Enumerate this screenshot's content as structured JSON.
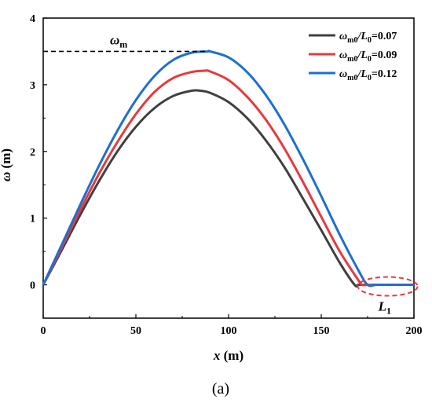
{
  "chart_data": {
    "type": "line",
    "xlabel": "x (m)",
    "ylabel": "ω (m)",
    "xlim": [
      0,
      200
    ],
    "ylim": [
      -0.5,
      4
    ],
    "x_ticks": [
      0,
      50,
      100,
      150,
      200
    ],
    "y_ticks": [
      0,
      1,
      2,
      3,
      4
    ],
    "grid": false,
    "legend_position": "top-right",
    "series": [
      {
        "name": "ωm0/L0=0.07",
        "color": "#404040",
        "x": [
          0,
          10,
          20,
          30,
          40,
          50,
          60,
          70,
          80,
          85,
          90,
          100,
          110,
          120,
          130,
          140,
          150,
          160,
          168,
          170,
          175,
          180,
          190,
          200
        ],
        "y": [
          0,
          0.52,
          1.05,
          1.55,
          2.0,
          2.37,
          2.65,
          2.83,
          2.91,
          2.91,
          2.88,
          2.74,
          2.5,
          2.17,
          1.77,
          1.3,
          0.82,
          0.33,
          0.0,
          0.0,
          0.0,
          0.0,
          0.0,
          0.0
        ]
      },
      {
        "name": "ωm0/L0=0.09",
        "color": "#e8393d",
        "x": [
          0,
          10,
          20,
          30,
          40,
          50,
          60,
          70,
          80,
          87,
          90,
          100,
          110,
          120,
          130,
          140,
          150,
          160,
          170,
          172,
          175,
          180,
          190,
          200
        ],
        "y": [
          0,
          0.56,
          1.12,
          1.66,
          2.14,
          2.56,
          2.89,
          3.1,
          3.19,
          3.21,
          3.2,
          3.07,
          2.82,
          2.48,
          2.05,
          1.55,
          1.02,
          0.5,
          0.07,
          0.0,
          0.0,
          0.0,
          0.0,
          0.0
        ]
      },
      {
        "name": "ωm0/L0=0.12",
        "color": "#1e6fd0",
        "x": [
          0,
          10,
          20,
          30,
          40,
          50,
          60,
          70,
          80,
          89,
          90,
          100,
          110,
          120,
          130,
          140,
          150,
          160,
          170,
          175,
          180,
          190,
          200
        ],
        "y": [
          0,
          0.6,
          1.2,
          1.78,
          2.31,
          2.77,
          3.13,
          3.37,
          3.48,
          3.5,
          3.5,
          3.41,
          3.19,
          2.85,
          2.41,
          1.89,
          1.33,
          0.75,
          0.22,
          0.0,
          0.0,
          0.0,
          0.0
        ]
      }
    ],
    "annotations": {
      "omega_m": {
        "label": "ωm",
        "y": 3.5,
        "x_end": 89,
        "style": "dashed"
      },
      "L1": {
        "label": "L1",
        "x_center": 185,
        "y": 0,
        "style": "red dashed ellipse"
      }
    },
    "caption": "(a)"
  }
}
